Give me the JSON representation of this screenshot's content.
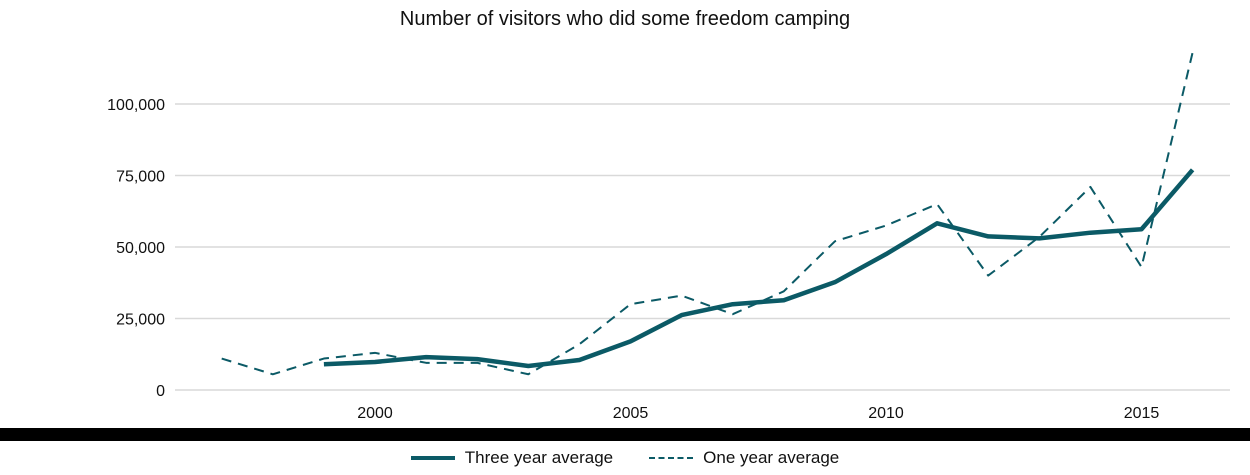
{
  "chart_data": {
    "type": "line",
    "title": "Number of visitors who did some freedom camping",
    "xlabel": "",
    "ylabel": "",
    "xlim": [
      1996,
      2017
    ],
    "ylim": [
      0,
      115000
    ],
    "x_ticks": [
      2000,
      2005,
      2010,
      2015
    ],
    "y_ticks": [
      0,
      25000,
      50000,
      75000,
      100000
    ],
    "y_tick_labels": [
      "0",
      "25,000",
      "50,000",
      "75,000",
      "100,000"
    ],
    "grid": "horizontal",
    "legend_position": "bottom",
    "color": "#0b5a66",
    "series": [
      {
        "name": "Three year average",
        "style": "solid",
        "x": [
          1999,
          2000,
          2001,
          2002,
          2003,
          2004,
          2005,
          2006,
          2007,
          2008,
          2009,
          2010,
          2011,
          2012,
          2013,
          2014,
          2015,
          2016
        ],
        "values": [
          9000,
          9800,
          11500,
          10800,
          8400,
          10500,
          17000,
          26200,
          30000,
          31400,
          37700,
          47500,
          58300,
          53700,
          53000,
          55000,
          56200,
          77000
        ]
      },
      {
        "name": "One year average",
        "style": "dashed",
        "x": [
          1997,
          1998,
          1999,
          2000,
          2001,
          2002,
          2003,
          2004,
          2005,
          2006,
          2007,
          2008,
          2009,
          2010,
          2011,
          2012,
          2013,
          2014,
          2015,
          2016
        ],
        "values": [
          11000,
          5500,
          11000,
          13000,
          9500,
          9500,
          5500,
          16000,
          30000,
          33000,
          26500,
          34500,
          52000,
          57500,
          65000,
          40000,
          53500,
          71000,
          43000,
          118000
        ]
      }
    ]
  }
}
